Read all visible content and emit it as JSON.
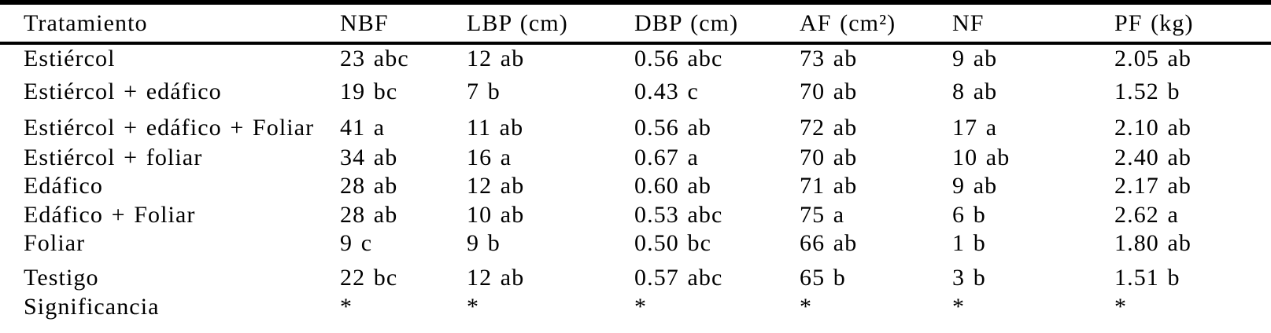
{
  "page": {
    "background_color": "#ffffff",
    "text_color": "#000000",
    "rule_color": "#000000"
  },
  "table": {
    "columns": [
      "Tratamiento",
      "NBF",
      "LBP (cm)",
      "DBP (cm)",
      "AF (cm²)",
      "NF",
      "PF (kg)"
    ],
    "rows": [
      [
        "Estiércol",
        "23 abc",
        "12 ab",
        "0.56 abc",
        "73 ab",
        "9 ab",
        "2.05 ab"
      ],
      [
        "Estiércol + edáfico",
        "19 bc",
        "7 b",
        "0.43 c",
        "70 ab",
        "8 ab",
        "1.52 b"
      ],
      [
        "Estiércol + edáfico + Foliar",
        "41 a",
        "11 ab",
        "0.56 ab",
        "72 ab",
        "17 a",
        "2.10 ab"
      ],
      [
        "Estiércol + foliar",
        "34 ab",
        "16 a",
        "0.67 a",
        "70 ab",
        "10 ab",
        "2.40 ab"
      ],
      [
        "Edáfico",
        "28 ab",
        "12 ab",
        "0.60 ab",
        "71 ab",
        "9 ab",
        "2.17 ab"
      ],
      [
        "Edáfico + Foliar",
        "28 ab",
        "10 ab",
        "0.53 abc",
        "75 a",
        "6 b",
        "2.62 a"
      ],
      [
        "Foliar",
        "9 c",
        "9 b",
        "0.50 bc",
        "66 ab",
        "1 b",
        "1.80 ab"
      ],
      [
        "Testigo",
        "22 bc",
        "12 ab",
        "0.57 abc",
        "65 b",
        "3 b",
        "1.51 b"
      ],
      [
        "Significancia",
        "*",
        "*",
        "*",
        "*",
        "*",
        "*"
      ]
    ]
  }
}
